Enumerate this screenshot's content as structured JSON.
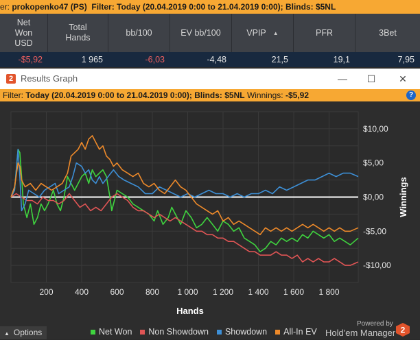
{
  "background": {
    "filter_strip": {
      "player_prefix": "er: ",
      "player": "prokopenko47 (PS)",
      "text": "Filter: Today (20.04.2019 0:00 to 21.04.2019 0:00); Blinds: $5NL"
    },
    "columns": [
      {
        "label_lines": [
          "Net",
          "Won",
          "USD"
        ]
      },
      {
        "label_lines": [
          "Total",
          "Hands"
        ]
      },
      {
        "label_lines": [
          "bb/100"
        ]
      },
      {
        "label_lines": [
          "EV bb/100"
        ]
      },
      {
        "label_lines": [
          "VPIP"
        ]
      },
      {
        "label_lines": [
          "PFR"
        ]
      },
      {
        "label_lines": [
          "3Bet"
        ]
      }
    ],
    "row": {
      "net_won": "-$5,92",
      "total_hands": "1 965",
      "bb100": "-6,03",
      "ev_bb100": "-4,48",
      "vpip": "21,5",
      "pfr": "19,1",
      "threebet": "7,95"
    }
  },
  "window": {
    "title": "Results Graph",
    "app_icon": "2",
    "controls": {
      "minimize": "—",
      "maximize": "☐",
      "close": "✕"
    },
    "filter_label": "Filter: ",
    "filter_bold": "Today (20.04.2019 0:00 to 21.04.2019 0:00); Blinds: $5NL",
    "winnings_label": " Winnings: ",
    "winnings_value": "-$5,92",
    "help": "?"
  },
  "bottom": {
    "options_label": "Options",
    "powered_by": "Powered by",
    "brand": "Hold'em Manager",
    "brand_logo_text": "2"
  },
  "colors": {
    "net_won": "#3fd43f",
    "non_showdown": "#e05555",
    "showdown": "#3d8fd6",
    "all_in_ev": "#ee8a2a",
    "zero_line": "#ffffff",
    "accent": "#f7a833"
  },
  "chart_data": {
    "type": "line",
    "xlabel": "Hands",
    "ylabel": "Winnings",
    "xlim": [
      0,
      1965
    ],
    "ylim": [
      -12.5,
      12.5
    ],
    "x_ticks": [
      200,
      400,
      600,
      800,
      1000,
      1200,
      1400,
      1600,
      1800
    ],
    "x_tick_labels": [
      "200",
      "400",
      "600",
      "800",
      "1 000",
      "1 200",
      "1 400",
      "1 600",
      "1 800"
    ],
    "y_ticks": [
      10,
      5,
      0,
      -5,
      -10
    ],
    "y_tick_labels": [
      "$10,00",
      "$5,00",
      "$0,00",
      "-$5,00",
      "-$10,00"
    ],
    "grid": true,
    "legend": "bottom",
    "series": [
      {
        "name": "Net Won",
        "color_key": "net_won",
        "points": [
          [
            0,
            0
          ],
          [
            20,
            1
          ],
          [
            30,
            4
          ],
          [
            40,
            7
          ],
          [
            50,
            6.5
          ],
          [
            60,
            3
          ],
          [
            70,
            -1
          ],
          [
            90,
            -3
          ],
          [
            110,
            -1
          ],
          [
            130,
            -4
          ],
          [
            150,
            -3
          ],
          [
            170,
            -1
          ],
          [
            190,
            -2
          ],
          [
            210,
            -1
          ],
          [
            240,
            1
          ],
          [
            260,
            -1
          ],
          [
            280,
            -2
          ],
          [
            300,
            0
          ],
          [
            320,
            3
          ],
          [
            340,
            2
          ],
          [
            360,
            1
          ],
          [
            380,
            2
          ],
          [
            400,
            3
          ],
          [
            420,
            3.5
          ],
          [
            440,
            2
          ],
          [
            460,
            4
          ],
          [
            480,
            3
          ],
          [
            500,
            3.5
          ],
          [
            520,
            4
          ],
          [
            540,
            3
          ],
          [
            560,
            0
          ],
          [
            570,
            -2
          ],
          [
            580,
            -1
          ],
          [
            600,
            1
          ],
          [
            630,
            0.5
          ],
          [
            660,
            0
          ],
          [
            690,
            -1
          ],
          [
            720,
            -1.5
          ],
          [
            750,
            -2
          ],
          [
            780,
            -2.5
          ],
          [
            810,
            -3.5
          ],
          [
            830,
            -2
          ],
          [
            860,
            -4
          ],
          [
            890,
            -3
          ],
          [
            910,
            -1.5
          ],
          [
            940,
            -3
          ],
          [
            960,
            -4
          ],
          [
            990,
            -2
          ],
          [
            1020,
            -3
          ],
          [
            1050,
            -4.5
          ],
          [
            1080,
            -4
          ],
          [
            1110,
            -3
          ],
          [
            1140,
            -4
          ],
          [
            1170,
            -5
          ],
          [
            1200,
            -3.5
          ],
          [
            1230,
            -4
          ],
          [
            1260,
            -5
          ],
          [
            1290,
            -4.5
          ],
          [
            1320,
            -6
          ],
          [
            1350,
            -6.5
          ],
          [
            1380,
            -7
          ],
          [
            1410,
            -8
          ],
          [
            1440,
            -7.5
          ],
          [
            1470,
            -6.5
          ],
          [
            1500,
            -7
          ],
          [
            1530,
            -6
          ],
          [
            1560,
            -6.5
          ],
          [
            1590,
            -6
          ],
          [
            1620,
            -6.5
          ],
          [
            1650,
            -5.5
          ],
          [
            1680,
            -6
          ],
          [
            1710,
            -5
          ],
          [
            1740,
            -5.5
          ],
          [
            1770,
            -6
          ],
          [
            1800,
            -5.5
          ],
          [
            1830,
            -6.5
          ],
          [
            1860,
            -6
          ],
          [
            1890,
            -6.5
          ],
          [
            1920,
            -7
          ],
          [
            1965,
            -6
          ]
        ]
      },
      {
        "name": "Non Showdown",
        "color_key": "non_showdown",
        "points": [
          [
            0,
            0
          ],
          [
            30,
            0.5
          ],
          [
            60,
            0
          ],
          [
            90,
            -0.5
          ],
          [
            120,
            -0.5
          ],
          [
            150,
            -1
          ],
          [
            180,
            0
          ],
          [
            210,
            -0.5
          ],
          [
            240,
            -0.5
          ],
          [
            270,
            -1
          ],
          [
            300,
            -0.5
          ],
          [
            330,
            0.5
          ],
          [
            360,
            -0.5
          ],
          [
            390,
            -1.5
          ],
          [
            420,
            -1
          ],
          [
            450,
            -2
          ],
          [
            480,
            -1.5
          ],
          [
            510,
            -2
          ],
          [
            540,
            -1
          ],
          [
            570,
            0
          ],
          [
            600,
            0.5
          ],
          [
            630,
            0
          ],
          [
            660,
            -0.5
          ],
          [
            690,
            -1.5
          ],
          [
            720,
            -2
          ],
          [
            750,
            -2
          ],
          [
            780,
            -2.5
          ],
          [
            810,
            -3
          ],
          [
            840,
            -2.5
          ],
          [
            870,
            -3
          ],
          [
            900,
            -3.5
          ],
          [
            930,
            -3
          ],
          [
            960,
            -3.5
          ],
          [
            990,
            -4
          ],
          [
            1020,
            -4.5
          ],
          [
            1050,
            -5
          ],
          [
            1080,
            -5
          ],
          [
            1110,
            -5.5
          ],
          [
            1140,
            -5.5
          ],
          [
            1170,
            -6
          ],
          [
            1200,
            -6
          ],
          [
            1230,
            -6.5
          ],
          [
            1260,
            -6.5
          ],
          [
            1290,
            -7
          ],
          [
            1320,
            -7.5
          ],
          [
            1350,
            -8
          ],
          [
            1380,
            -8
          ],
          [
            1410,
            -8.5
          ],
          [
            1440,
            -8.5
          ],
          [
            1470,
            -8.5
          ],
          [
            1500,
            -8
          ],
          [
            1530,
            -8.5
          ],
          [
            1560,
            -8.5
          ],
          [
            1590,
            -9
          ],
          [
            1620,
            -8.5
          ],
          [
            1650,
            -9.5
          ],
          [
            1680,
            -9
          ],
          [
            1710,
            -9.5
          ],
          [
            1740,
            -9
          ],
          [
            1770,
            -9.5
          ],
          [
            1800,
            -9.5
          ],
          [
            1830,
            -9
          ],
          [
            1860,
            -9.5
          ],
          [
            1890,
            -10
          ],
          [
            1920,
            -10
          ],
          [
            1965,
            -9.5
          ]
        ]
      },
      {
        "name": "Showdown",
        "color_key": "showdown",
        "points": [
          [
            0,
            0
          ],
          [
            20,
            1
          ],
          [
            40,
            7
          ],
          [
            50,
            3
          ],
          [
            60,
            -2
          ],
          [
            80,
            -1
          ],
          [
            100,
            1
          ],
          [
            130,
            0.5
          ],
          [
            160,
            0
          ],
          [
            190,
            1
          ],
          [
            220,
            1.5
          ],
          [
            250,
            2
          ],
          [
            270,
            0.5
          ],
          [
            300,
            1
          ],
          [
            330,
            1.5
          ],
          [
            350,
            3
          ],
          [
            370,
            5
          ],
          [
            400,
            4.5
          ],
          [
            420,
            3.5
          ],
          [
            440,
            4
          ],
          [
            460,
            2.5
          ],
          [
            480,
            2
          ],
          [
            500,
            3
          ],
          [
            520,
            2
          ],
          [
            550,
            3
          ],
          [
            580,
            4
          ],
          [
            610,
            3
          ],
          [
            640,
            2.5
          ],
          [
            680,
            2
          ],
          [
            720,
            1.5
          ],
          [
            760,
            0.5
          ],
          [
            800,
            0.5
          ],
          [
            840,
            1.5
          ],
          [
            880,
            1
          ],
          [
            920,
            0.5
          ],
          [
            960,
            0
          ],
          [
            1000,
            0.5
          ],
          [
            1040,
            0
          ],
          [
            1080,
            0.5
          ],
          [
            1120,
            1
          ],
          [
            1160,
            0.5
          ],
          [
            1200,
            0.5
          ],
          [
            1240,
            0
          ],
          [
            1280,
            0.5
          ],
          [
            1320,
            0
          ],
          [
            1360,
            0.5
          ],
          [
            1400,
            0.5
          ],
          [
            1440,
            1
          ],
          [
            1480,
            0.5
          ],
          [
            1520,
            1.5
          ],
          [
            1560,
            1
          ],
          [
            1600,
            1.5
          ],
          [
            1640,
            2
          ],
          [
            1680,
            2.5
          ],
          [
            1720,
            2.5
          ],
          [
            1760,
            3
          ],
          [
            1800,
            3.5
          ],
          [
            1840,
            3
          ],
          [
            1880,
            3.5
          ],
          [
            1920,
            3.5
          ],
          [
            1965,
            3
          ]
        ]
      },
      {
        "name": "All-In EV",
        "color_key": "all_in_ev",
        "points": [
          [
            0,
            0
          ],
          [
            20,
            1.5
          ],
          [
            40,
            5
          ],
          [
            50,
            4.5
          ],
          [
            60,
            2.5
          ],
          [
            80,
            1.5
          ],
          [
            110,
            2
          ],
          [
            140,
            1
          ],
          [
            170,
            2
          ],
          [
            200,
            1.5
          ],
          [
            230,
            1
          ],
          [
            260,
            1.5
          ],
          [
            290,
            2
          ],
          [
            320,
            3.5
          ],
          [
            340,
            6
          ],
          [
            360,
            6.5
          ],
          [
            380,
            7
          ],
          [
            400,
            8
          ],
          [
            420,
            7
          ],
          [
            440,
            8.5
          ],
          [
            460,
            9
          ],
          [
            480,
            8
          ],
          [
            500,
            7
          ],
          [
            520,
            7.5
          ],
          [
            540,
            6
          ],
          [
            560,
            5.5
          ],
          [
            580,
            4.5
          ],
          [
            600,
            5
          ],
          [
            630,
            4
          ],
          [
            660,
            3.5
          ],
          [
            690,
            3
          ],
          [
            720,
            3.5
          ],
          [
            750,
            2
          ],
          [
            780,
            1.5
          ],
          [
            810,
            2
          ],
          [
            840,
            1
          ],
          [
            870,
            0.5
          ],
          [
            900,
            1.5
          ],
          [
            930,
            2.5
          ],
          [
            960,
            1.5
          ],
          [
            990,
            1
          ],
          [
            1020,
            0
          ],
          [
            1050,
            -1
          ],
          [
            1080,
            -1.5
          ],
          [
            1110,
            -2
          ],
          [
            1140,
            -2.5
          ],
          [
            1170,
            -2
          ],
          [
            1200,
            -3.5
          ],
          [
            1230,
            -3
          ],
          [
            1260,
            -4
          ],
          [
            1290,
            -3.5
          ],
          [
            1320,
            -4
          ],
          [
            1350,
            -4.5
          ],
          [
            1380,
            -5
          ],
          [
            1410,
            -5.5
          ],
          [
            1440,
            -4.5
          ],
          [
            1470,
            -5
          ],
          [
            1500,
            -4.5
          ],
          [
            1530,
            -5
          ],
          [
            1560,
            -4.5
          ],
          [
            1590,
            -5
          ],
          [
            1620,
            -4.5
          ],
          [
            1650,
            -4
          ],
          [
            1680,
            -4.5
          ],
          [
            1710,
            -4
          ],
          [
            1740,
            -4.5
          ],
          [
            1770,
            -5
          ],
          [
            1800,
            -4.5
          ],
          [
            1830,
            -5
          ],
          [
            1860,
            -4.5
          ],
          [
            1890,
            -5
          ],
          [
            1920,
            -5
          ],
          [
            1965,
            -4.5
          ]
        ]
      }
    ]
  }
}
